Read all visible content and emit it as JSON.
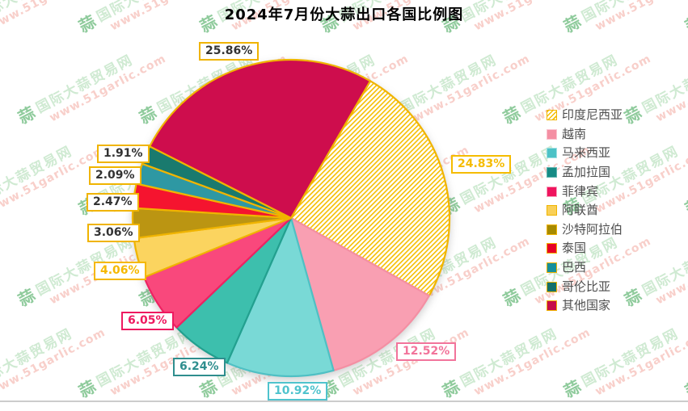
{
  "title": "2024年7月份大蒜出口各国比例图",
  "watermark": {
    "logo_char": "蒜",
    "site_name": "国际大蒜贸易网",
    "site_url": "www.51garlic.com"
  },
  "colors": {
    "gold_accent": "#f0b400",
    "hatch_stripe": "#f5be00",
    "divider": "#cccccc",
    "legend_text": "#4d4d4d",
    "label_dark_text": "#333333",
    "watermark_name_green": "#cfead2",
    "watermark_logo_green": "#8fcb9c",
    "watermark_url_red": "#f8cfca"
  },
  "chart_data": {
    "type": "pie",
    "title": "2024年7月份大蒜出口各国比例图",
    "value_unit": "percent",
    "direction": "clockwise",
    "start_angle_clockwise_from_top_deg": 30,
    "legend_position": "right",
    "series": [
      {
        "name": "印度尼西亚",
        "value": 24.83,
        "label": "24.83%",
        "slice_fill": "gold-hatch",
        "slice_stroke": "#f0b400",
        "legend_fill": "gold-hatch",
        "legend_border": "#f0b400",
        "label_text": "#f5bc00",
        "label_border": "#f5bc00"
      },
      {
        "name": "越南",
        "value": 12.52,
        "label": "12.52%",
        "slice_fill": "#f99fb2",
        "slice_stroke": "#f48fa3",
        "legend_fill": "#f48fa3",
        "legend_border": "#fbc3cf",
        "label_text": "#f2749b",
        "label_border": "#f2749b"
      },
      {
        "name": "马来西亚",
        "value": 10.92,
        "label": "10.92%",
        "slice_fill": "#79d9d6",
        "slice_stroke": "#4fc0c4",
        "legend_fill": "#4cc2c6",
        "legend_border": "#9fdfe2",
        "label_text": "#4fc3cd",
        "label_border": "#4fc3cd"
      },
      {
        "name": "孟加拉国",
        "value": 6.24,
        "label": "6.24%",
        "slice_fill": "#3dbfad",
        "slice_stroke": "#23a08f",
        "legend_fill": "#168b85",
        "legend_border": "#5fb3ae",
        "label_text": "#2f8e8e",
        "label_border": "#2f8e8e"
      },
      {
        "name": "菲律宾",
        "value": 6.05,
        "label": "6.05%",
        "slice_fill": "#f9487c",
        "slice_stroke": "#ee2162",
        "legend_fill": "#ef145e",
        "legend_border": "#f7a3bd",
        "label_text": "#ee1960",
        "label_border": "#ee1960"
      },
      {
        "name": "阿联酋",
        "value": 4.06,
        "label": "4.06%",
        "slice_fill": "#fbd45f",
        "slice_stroke": "#f0b400",
        "legend_fill": "#f9d058",
        "legend_border": "#f0b400",
        "label_text": "#f5b800",
        "label_border": "#f5b800"
      },
      {
        "name": "沙特阿拉伯",
        "value": 3.06,
        "label": "3.06%",
        "slice_fill": "#bb9512",
        "slice_stroke": "#f0b400",
        "legend_fill": "#a68a00",
        "legend_border": "#f0b400",
        "label_text": "#333333",
        "label_border": "#f0b400"
      },
      {
        "name": "泰国",
        "value": 2.47,
        "label": "2.47%",
        "slice_fill": "#f5142f",
        "slice_stroke": "#f0b400",
        "legend_fill": "#e60026",
        "legend_border": "#f0b400",
        "label_text": "#333333",
        "label_border": "#f0b400"
      },
      {
        "name": "巴西",
        "value": 2.09,
        "label": "2.09%",
        "slice_fill": "#2e98a3",
        "slice_stroke": "#f0b400",
        "legend_fill": "#16909b",
        "legend_border": "#f0b400",
        "label_text": "#333333",
        "label_border": "#f0b400"
      },
      {
        "name": "哥伦比亚",
        "value": 1.91,
        "label": "1.91%",
        "slice_fill": "#1a7a6e",
        "slice_stroke": "#f0b400",
        "legend_fill": "#14706b",
        "legend_border": "#f0b400",
        "label_text": "#333333",
        "label_border": "#f0b400"
      },
      {
        "name": "其他国家",
        "value": 25.86,
        "label": "25.86%",
        "slice_fill": "#ce0d4d",
        "slice_stroke": "#f0b400",
        "legend_fill": "#c50d4a",
        "legend_border": "#f0b400",
        "label_text": "#333333",
        "label_border": "#f0b400"
      }
    ]
  }
}
